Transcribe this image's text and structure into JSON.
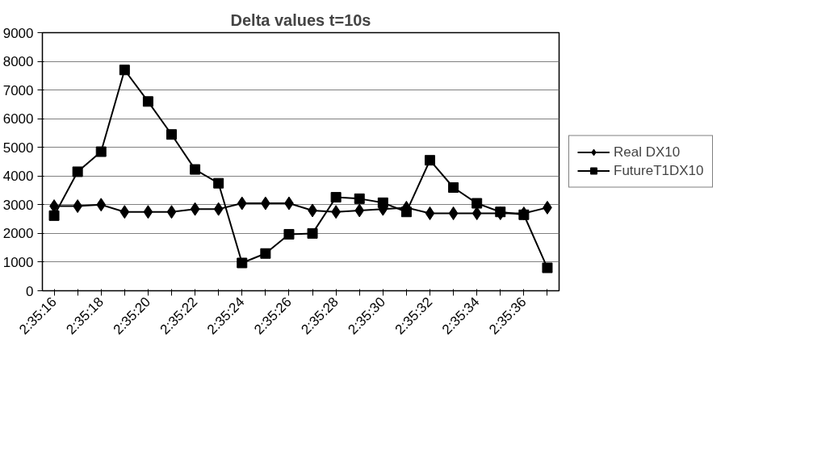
{
  "chart_data": {
    "type": "line",
    "title": "Delta values t=10s",
    "categories": [
      "2:35:16",
      null,
      "2:35:18",
      null,
      "2:35:20",
      null,
      "2:35:22",
      null,
      "2:35:24",
      null,
      "2:35:26",
      null,
      "2:35:28",
      null,
      "2:35:30",
      null,
      "2:35:32",
      null,
      "2:35:34",
      null,
      "2:35:36",
      null
    ],
    "series": [
      {
        "name": "Real DX10",
        "color": "#000000",
        "marker": "diamond",
        "values": [
          2950,
          2950,
          3000,
          2750,
          2750,
          2750,
          2850,
          2850,
          3050,
          3050,
          3050,
          2800,
          2750,
          2800,
          2850,
          2900,
          2700,
          2700,
          2700,
          2700,
          2700,
          2900
        ]
      },
      {
        "name": "FutureT1DX10",
        "color": "#000000",
        "marker": "square",
        "values": [
          2620,
          4150,
          4850,
          7700,
          6600,
          5450,
          4230,
          3750,
          970,
          1300,
          1970,
          2000,
          3260,
          3210,
          3070,
          2750,
          4550,
          3600,
          3050,
          2750,
          2650,
          800
        ]
      }
    ],
    "ylim": [
      0,
      9000
    ],
    "yticks": [
      0,
      1000,
      2000,
      3000,
      4000,
      5000,
      6000,
      7000,
      8000,
      9000
    ],
    "grid": "y",
    "legend": "right",
    "line_style": "solid"
  }
}
